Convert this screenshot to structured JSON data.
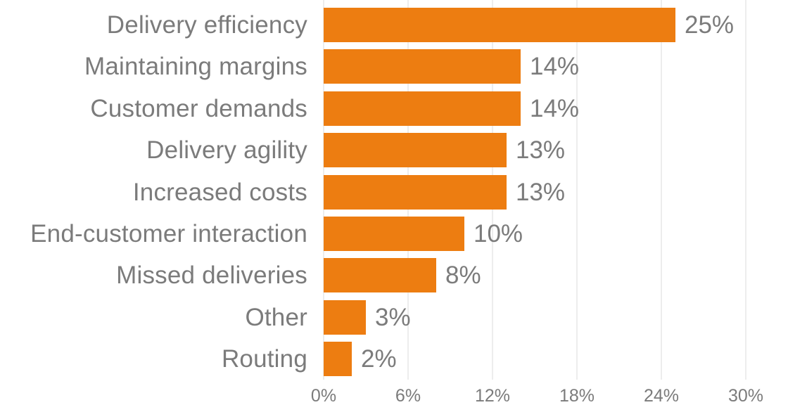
{
  "chart_data": {
    "type": "bar",
    "orientation": "horizontal",
    "title": "",
    "xlabel": "",
    "ylabel": "",
    "categories": [
      "Delivery efficiency",
      "Maintaining margins",
      "Customer demands",
      "Delivery agility",
      "Increased costs",
      "End-customer interaction",
      "Missed deliveries",
      "Other",
      "Routing"
    ],
    "values": [
      25,
      14,
      14,
      13,
      13,
      10,
      8,
      3,
      2
    ],
    "value_labels": [
      "25%",
      "14%",
      "14%",
      "13%",
      "13%",
      "10%",
      "8%",
      "3%",
      "2%"
    ],
    "x_ticks": [
      "0%",
      "6%",
      "12%",
      "18%",
      "24%",
      "30%"
    ],
    "x_tick_values": [
      0,
      6,
      12,
      18,
      24,
      30
    ],
    "xlim": [
      0,
      30
    ],
    "grid": "vertical-gridlines-on",
    "legend": "none",
    "colors": {
      "bar": "#ED7D11",
      "label_text": "#7b7b7b",
      "tick_text": "#7b7b7b",
      "gridline": "#ededed",
      "background": "#ffffff"
    }
  }
}
